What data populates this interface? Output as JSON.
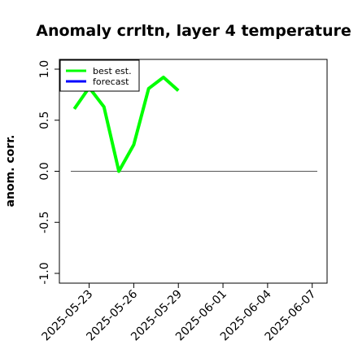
{
  "chart_data": {
    "type": "line",
    "title": "Anomaly crrltn, layer 4 temperature",
    "xlabel": "",
    "ylabel": "anom. corr.",
    "x_tick_labels": [
      "2025-05-23",
      "2025-05-26",
      "2025-05-29",
      "2025-06-01",
      "2025-06-04",
      "2025-06-07"
    ],
    "highlighted_tick": "2025-05-29",
    "highlight_color": "#1a8a1a",
    "ylim": [
      -1.0,
      1.0
    ],
    "y_ticks": [
      "-1.0",
      "-0.5",
      "0.0",
      "0.5",
      "1.0"
    ],
    "xlim": [
      "2025-05-21",
      "2025-06-08"
    ],
    "reference_line": 0.0,
    "grid": false,
    "legend_position": "top-left",
    "series": [
      {
        "name": "best est.",
        "color": "#00ff00",
        "x": [
          "2025-05-22",
          "2025-05-23",
          "2025-05-24",
          "2025-05-25",
          "2025-05-26",
          "2025-05-27",
          "2025-05-28",
          "2025-05-29"
        ],
        "values": [
          0.61,
          0.82,
          0.63,
          0.0,
          0.26,
          0.81,
          0.92,
          0.79
        ]
      },
      {
        "name": "forecast",
        "color": "#0000ff",
        "x": [],
        "values": []
      }
    ]
  }
}
